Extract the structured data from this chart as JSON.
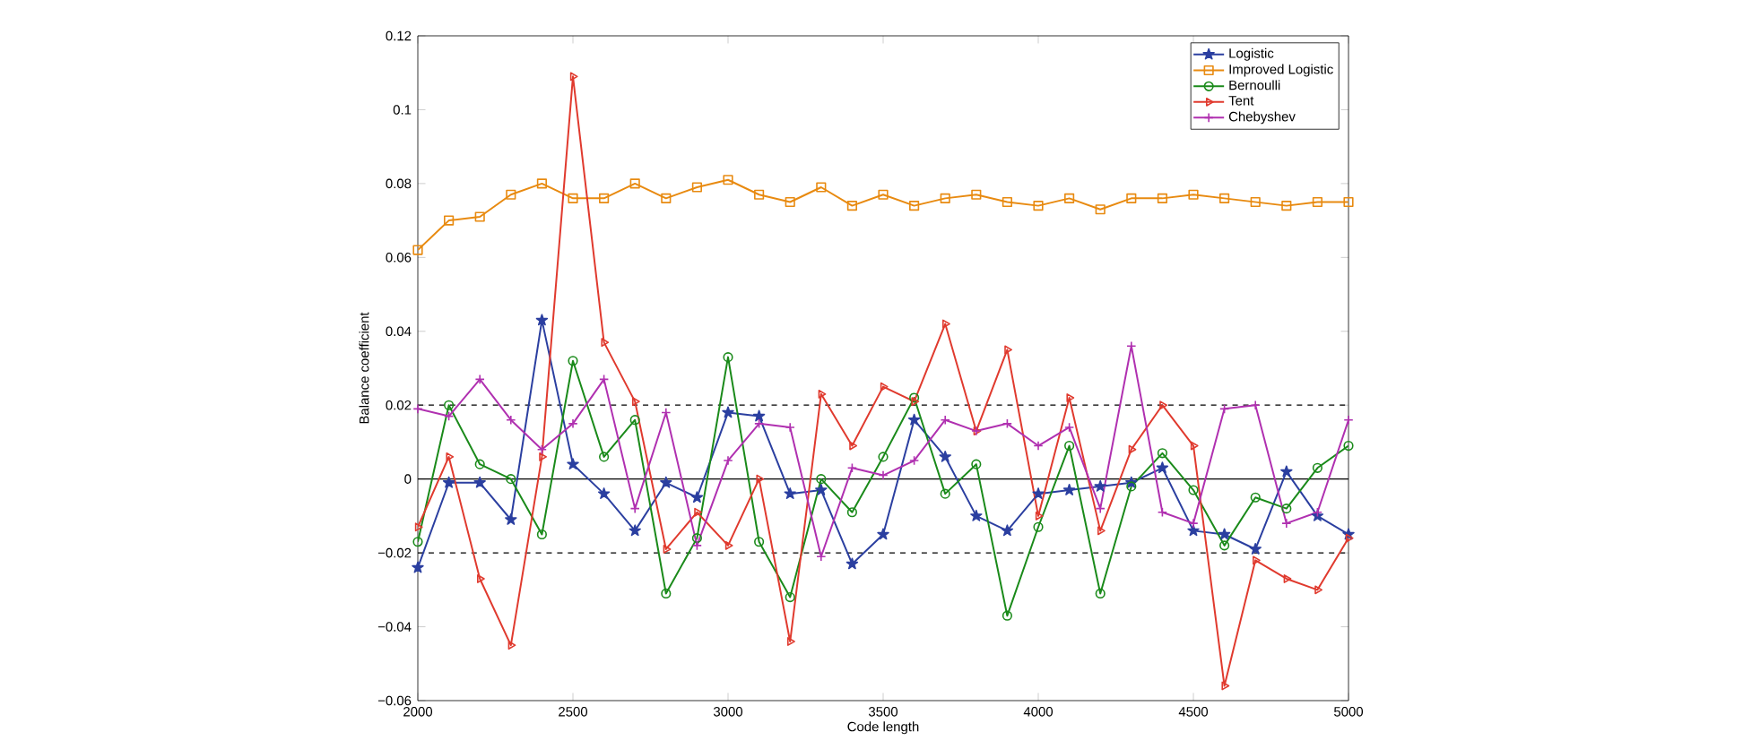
{
  "chart_data": {
    "type": "line",
    "xlabel": "Code length",
    "ylabel": "Balance coefficient",
    "x": [
      2000,
      2100,
      2200,
      2300,
      2400,
      2500,
      2600,
      2700,
      2800,
      2900,
      3000,
      3100,
      3200,
      3300,
      3400,
      3500,
      3600,
      3700,
      3800,
      3900,
      4000,
      4100,
      4200,
      4300,
      4400,
      4500,
      4600,
      4700,
      4800,
      4900,
      5000
    ],
    "series": [
      {
        "name": "Logistic",
        "color": "#2b3fa0",
        "marker": "star",
        "values": [
          -0.024,
          -0.001,
          -0.001,
          -0.011,
          0.043,
          0.004,
          -0.004,
          -0.014,
          -0.001,
          -0.005,
          0.018,
          0.017,
          -0.004,
          -0.003,
          -0.023,
          -0.015,
          0.016,
          0.006,
          -0.01,
          -0.014,
          -0.004,
          -0.003,
          -0.002,
          -0.001,
          0.003,
          -0.014,
          -0.015,
          -0.019,
          0.002,
          -0.01,
          -0.015
        ]
      },
      {
        "name": "Improved Logistic",
        "color": "#e88a10",
        "marker": "square",
        "values": [
          0.062,
          0.07,
          0.071,
          0.077,
          0.08,
          0.076,
          0.076,
          0.08,
          0.076,
          0.079,
          0.081,
          0.077,
          0.075,
          0.079,
          0.074,
          0.077,
          0.074,
          0.076,
          0.077,
          0.075,
          0.074,
          0.076,
          0.073,
          0.076,
          0.076,
          0.077,
          0.076,
          0.075,
          0.074,
          0.075,
          0.075
        ]
      },
      {
        "name": "Bernoulli",
        "color": "#1a8a1a",
        "marker": "circle",
        "values": [
          -0.017,
          0.02,
          0.004,
          0.0,
          -0.015,
          0.032,
          0.006,
          0.016,
          -0.031,
          -0.016,
          0.033,
          -0.017,
          -0.032,
          0.0,
          -0.009,
          0.006,
          0.022,
          -0.004,
          0.004,
          -0.037,
          -0.013,
          0.009,
          -0.031,
          -0.002,
          0.007,
          -0.003,
          -0.018,
          -0.005,
          -0.008,
          0.003,
          0.009
        ]
      },
      {
        "name": "Tent",
        "color": "#e03a2e",
        "marker": "triangle",
        "values": [
          -0.013,
          0.006,
          -0.027,
          -0.045,
          0.006,
          0.109,
          0.037,
          0.021,
          -0.019,
          -0.009,
          -0.018,
          0.0,
          -0.044,
          0.023,
          0.009,
          0.025,
          0.021,
          0.042,
          0.013,
          0.035,
          -0.01,
          0.022,
          -0.014,
          0.008,
          0.02,
          0.009,
          -0.056,
          -0.022,
          -0.027,
          -0.03,
          -0.016
        ]
      },
      {
        "name": "Chebyshev",
        "color": "#b030b0",
        "marker": "cross",
        "values": [
          0.019,
          0.017,
          0.027,
          0.016,
          0.008,
          0.015,
          0.027,
          -0.008,
          0.018,
          -0.018,
          0.005,
          0.015,
          0.014,
          -0.021,
          0.003,
          0.001,
          0.005,
          0.016,
          0.013,
          0.015,
          0.009,
          0.014,
          -0.008,
          0.036,
          -0.009,
          -0.012,
          0.019,
          0.02,
          -0.012,
          -0.009,
          0.016
        ]
      }
    ],
    "xlim": [
      2000,
      5000
    ],
    "ylim": [
      -0.06,
      0.12
    ],
    "xticks": [
      2000,
      2500,
      3000,
      3500,
      4000,
      4500,
      5000
    ],
    "yticks": [
      {
        "value": -0.06,
        "label": "−0.06"
      },
      {
        "value": -0.04,
        "label": "−0.04"
      },
      {
        "value": -0.02,
        "label": "−0.02"
      },
      0,
      0.02,
      0.04,
      0.06,
      0.08,
      0.1,
      0.12
    ],
    "ref_lines": [
      {
        "axis": "y",
        "value": 0.02,
        "color": "#000000",
        "line_style": "dashed"
      },
      {
        "axis": "y",
        "value": 0,
        "color": "#000000",
        "line_style": "solid"
      },
      {
        "axis": "y",
        "value": -0.02,
        "color": "#000000",
        "line_style": "dashed"
      }
    ],
    "grid": false,
    "legend": "top right",
    "line_style": "solid"
  }
}
